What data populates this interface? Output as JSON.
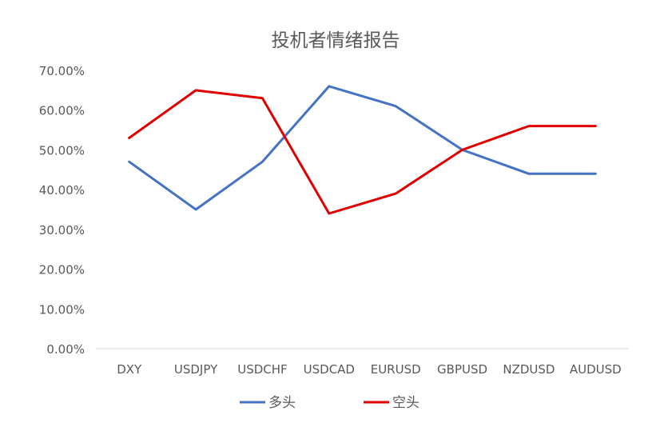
{
  "chart_data": {
    "type": "line",
    "title": "投机者情绪报告",
    "categories": [
      "DXY",
      "USDJPY",
      "USDCHF",
      "USDCAD",
      "EURUSD",
      "GBPUSD",
      "NZDUSD",
      "AUDUSD"
    ],
    "series": [
      {
        "name": "多头",
        "color": "#4472C4",
        "values": [
          0.47,
          0.35,
          0.47,
          0.66,
          0.61,
          0.5,
          0.44,
          0.44
        ]
      },
      {
        "name": "空头",
        "color": "#E00000",
        "values": [
          0.53,
          0.65,
          0.63,
          0.34,
          0.39,
          0.5,
          0.56,
          0.56
        ]
      }
    ],
    "ylim": [
      0,
      0.7
    ],
    "yticks": [
      "0.00%",
      "10.00%",
      "20.00%",
      "30.00%",
      "40.00%",
      "50.00%",
      "60.00%",
      "70.00%"
    ],
    "xlabel": "",
    "ylabel": "",
    "grid": false,
    "legend_position": "bottom"
  }
}
